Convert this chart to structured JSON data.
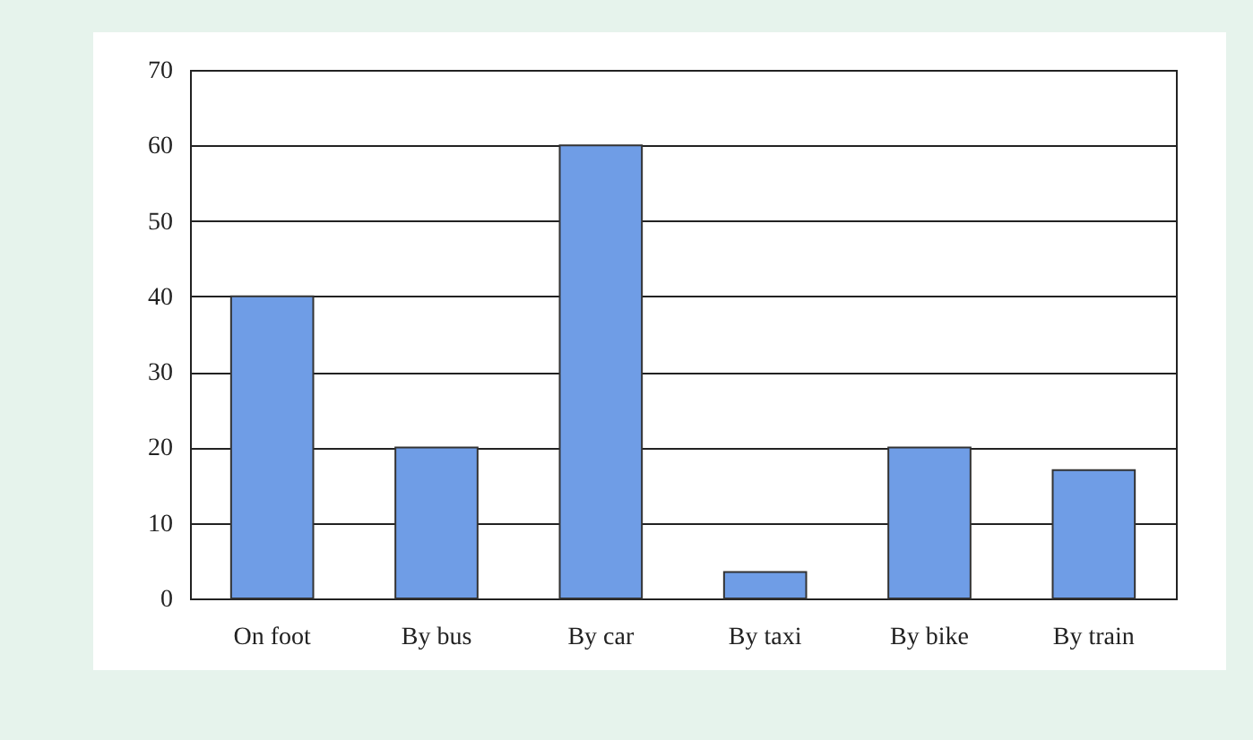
{
  "chart_data": {
    "type": "bar",
    "categories": [
      "On foot",
      "By bus",
      "By car",
      "By taxi",
      "By bike",
      "By train"
    ],
    "values": [
      40,
      20,
      60,
      3.5,
      20,
      17
    ],
    "color": "#6f9de6",
    "ylim": [
      0,
      70
    ],
    "yticks": [
      0,
      10,
      20,
      30,
      40,
      50,
      60,
      70
    ],
    "grid": "y"
  }
}
